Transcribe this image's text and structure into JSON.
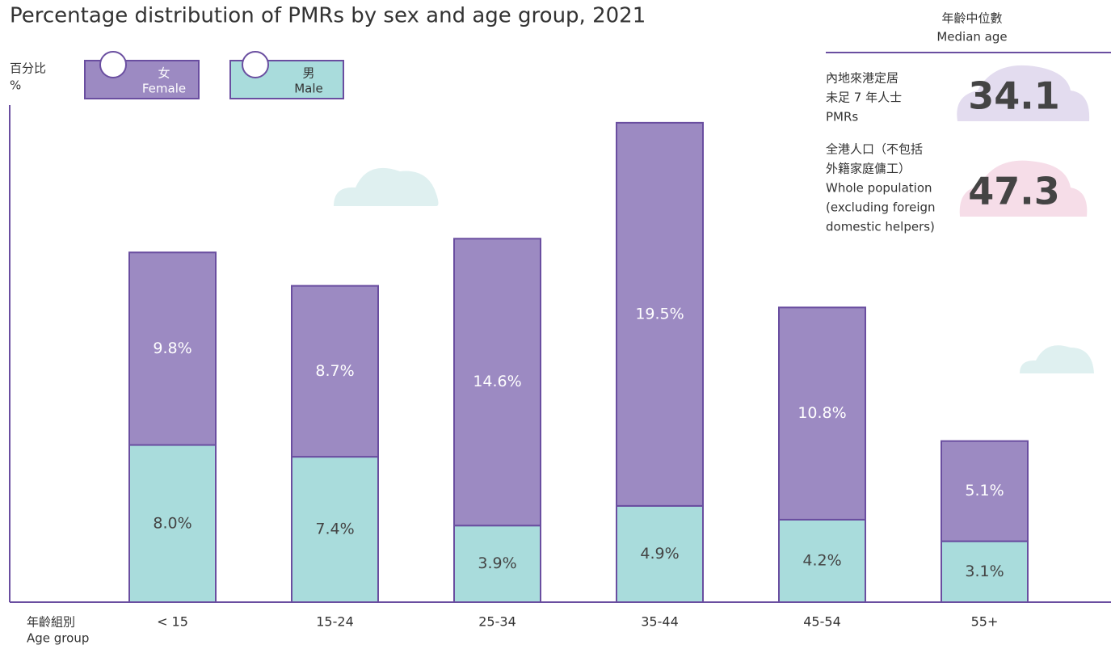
{
  "chart_data": {
    "type": "stacked_bar",
    "title": "Percentage distribution of PMRs by sex and age group, 2021",
    "y_label_zh": "百分比",
    "y_label": "%",
    "x_label_zh": "年齡組別",
    "x_label": "Age group",
    "categories": [
      "< 15",
      "15-24",
      "25-34",
      "35-44",
      "45-54",
      "55+"
    ],
    "series": [
      {
        "name": "Male",
        "name_zh": "男",
        "color": "#a9dcdc",
        "label_color": "#444444",
        "values": [
          8.0,
          7.4,
          3.9,
          4.9,
          4.2,
          3.1
        ],
        "value_labels": [
          "8.0%",
          "7.4%",
          "3.9%",
          "4.9%",
          "4.2%",
          "3.1%"
        ]
      },
      {
        "name": "Female",
        "name_zh": "女",
        "color": "#9c8ac2",
        "label_color": "#ffffff",
        "values": [
          9.8,
          8.7,
          14.6,
          19.5,
          10.8,
          5.1
        ],
        "value_labels": [
          "9.8%",
          "8.7%",
          "14.6%",
          "19.5%",
          "10.8%",
          "5.1%"
        ]
      }
    ],
    "ylim": [
      0,
      25.3
    ],
    "median_age": {
      "title_zh": "年齡中位數",
      "title": "Median age",
      "items": [
        {
          "lines": [
            "內地來港定居",
            "未足 7 年人士",
            "PMRs"
          ],
          "value": 34.1
        },
        {
          "lines": [
            "全港人口（不包括",
            "外籍家庭傭工）",
            "Whole population",
            "(excluding foreign",
            "domestic helpers)"
          ],
          "value": 47.3
        }
      ]
    }
  }
}
